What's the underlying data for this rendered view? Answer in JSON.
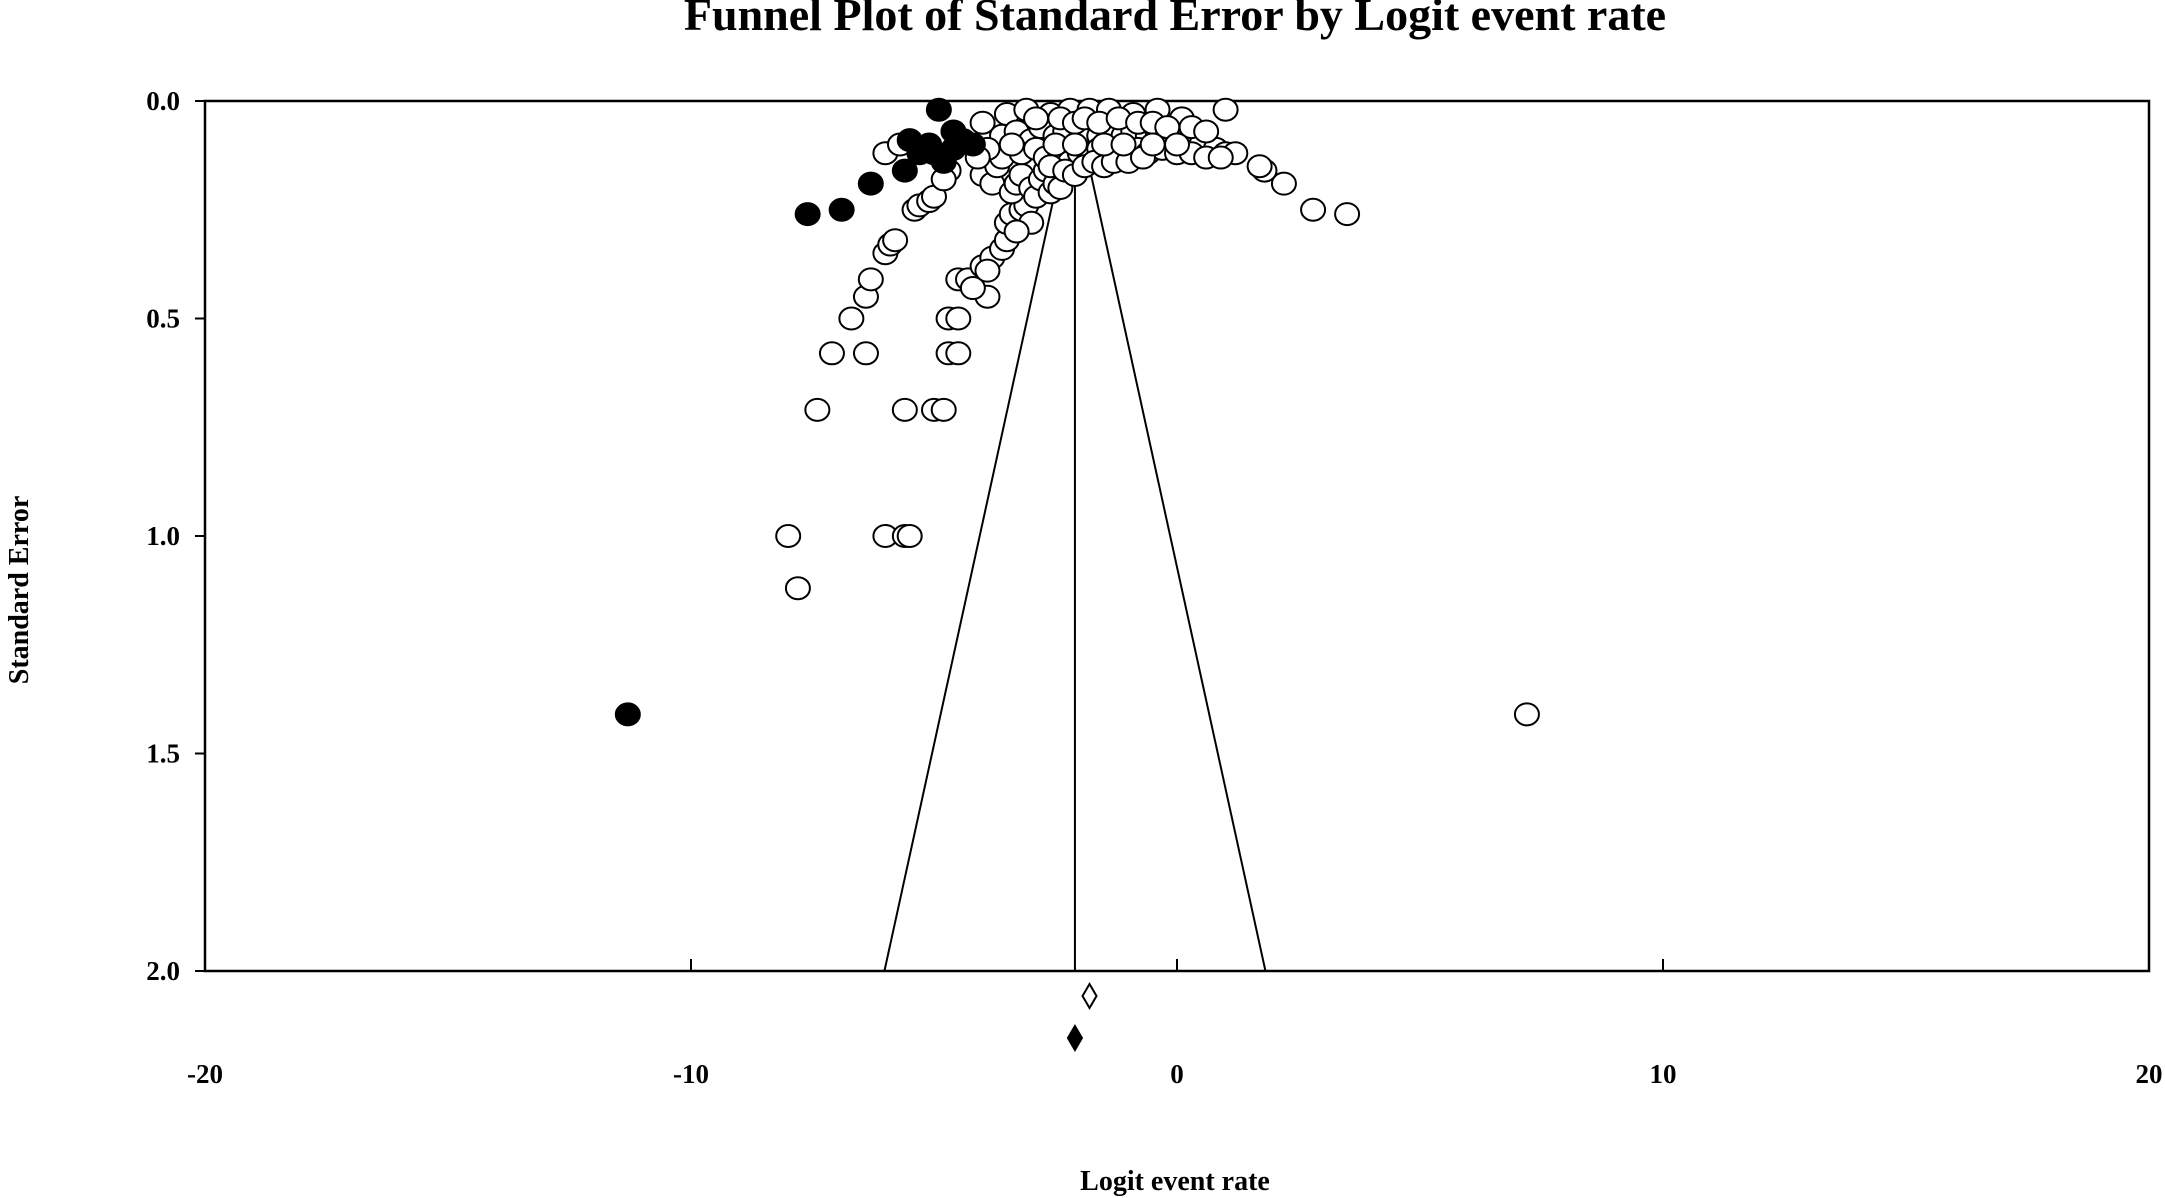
{
  "chart_data": {
    "type": "scatter",
    "title": "Funnel Plot of Standard Error by Logit event rate",
    "xlabel": "Logit event rate",
    "ylabel": "Standard Error",
    "xlim": [
      -20,
      20
    ],
    "ylim": [
      0.0,
      2.0
    ],
    "y_inverted": true,
    "x_ticks": [
      "-20",
      "-10",
      "0",
      "10",
      "20"
    ],
    "y_ticks": [
      "0.0",
      "0.5",
      "1.0",
      "1.5",
      "2.0"
    ],
    "x_tick_values": [
      -20,
      -10,
      0,
      10,
      20
    ],
    "y_tick_values": [
      0.0,
      0.5,
      1.0,
      1.5,
      2.0
    ],
    "grid": false,
    "legend": "none",
    "funnel": {
      "center": -2.1,
      "z": 1.96,
      "se_max": 2.0
    },
    "summary": {
      "observed": {
        "estimate": -2.1,
        "marker": "filled-diamond"
      },
      "adjusted": {
        "estimate": -1.8,
        "marker": "open-diamond"
      }
    },
    "series": [
      {
        "marker": "open-circle",
        "points": [
          [
            7.2,
            1.41
          ],
          [
            -8.0,
            1.0
          ],
          [
            -7.8,
            1.12
          ],
          [
            -6.0,
            1.0
          ],
          [
            -5.6,
            1.0
          ],
          [
            -5.5,
            1.0
          ],
          [
            -7.4,
            0.71
          ],
          [
            -5.6,
            0.71
          ],
          [
            -5.0,
            0.71
          ],
          [
            -4.8,
            0.71
          ],
          [
            -7.1,
            0.58
          ],
          [
            -6.4,
            0.58
          ],
          [
            -4.7,
            0.58
          ],
          [
            -4.5,
            0.58
          ],
          [
            -6.7,
            0.5
          ],
          [
            -4.7,
            0.5
          ],
          [
            -4.5,
            0.5
          ],
          [
            -6.4,
            0.45
          ],
          [
            -6.3,
            0.41
          ],
          [
            -4.5,
            0.41
          ],
          [
            -4.3,
            0.41
          ],
          [
            -3.9,
            0.45
          ],
          [
            -4.2,
            0.43
          ],
          [
            -6.0,
            0.35
          ],
          [
            -5.9,
            0.33
          ],
          [
            -5.8,
            0.32
          ],
          [
            -4.0,
            0.38
          ],
          [
            -3.8,
            0.36
          ],
          [
            -3.6,
            0.34
          ],
          [
            -3.5,
            0.32
          ],
          [
            -3.9,
            0.39
          ],
          [
            -5.4,
            0.25
          ],
          [
            -5.3,
            0.24
          ],
          [
            -5.1,
            0.23
          ],
          [
            -5.0,
            0.22
          ],
          [
            -3.5,
            0.28
          ],
          [
            -3.4,
            0.26
          ],
          [
            -3.2,
            0.25
          ],
          [
            -3.1,
            0.24
          ],
          [
            -3.0,
            0.28
          ],
          [
            -3.3,
            0.3
          ],
          [
            3.5,
            0.26
          ],
          [
            2.8,
            0.25
          ],
          [
            2.2,
            0.19
          ],
          [
            1.8,
            0.16
          ],
          [
            1.7,
            0.15
          ],
          [
            1.0,
            0.02
          ],
          [
            -6.0,
            0.12
          ],
          [
            -5.7,
            0.1
          ],
          [
            -4.7,
            0.16
          ],
          [
            -4.8,
            0.18
          ],
          [
            -4.0,
            0.17
          ],
          [
            -3.8,
            0.19
          ],
          [
            -3.7,
            0.15
          ],
          [
            -3.6,
            0.13
          ],
          [
            -3.4,
            0.21
          ],
          [
            -3.3,
            0.19
          ],
          [
            -3.2,
            0.17
          ],
          [
            -3.0,
            0.2
          ],
          [
            -2.9,
            0.22
          ],
          [
            -2.8,
            0.18
          ],
          [
            -2.7,
            0.16
          ],
          [
            -2.6,
            0.21
          ],
          [
            -2.5,
            0.19
          ],
          [
            -2.4,
            0.2
          ],
          [
            -4.0,
            0.05
          ],
          [
            -3.5,
            0.03
          ],
          [
            -3.1,
            0.02
          ],
          [
            -2.6,
            0.03
          ],
          [
            -2.2,
            0.02
          ],
          [
            -1.8,
            0.02
          ],
          [
            -1.4,
            0.02
          ],
          [
            -0.9,
            0.03
          ],
          [
            -0.4,
            0.02
          ],
          [
            0.1,
            0.04
          ],
          [
            -3.6,
            0.08
          ],
          [
            -3.3,
            0.07
          ],
          [
            -3.0,
            0.09
          ],
          [
            -2.8,
            0.06
          ],
          [
            -2.5,
            0.08
          ],
          [
            -2.3,
            0.07
          ],
          [
            -2.0,
            0.09
          ],
          [
            -1.8,
            0.07
          ],
          [
            -1.6,
            0.08
          ],
          [
            -1.3,
            0.06
          ],
          [
            -1.1,
            0.08
          ],
          [
            -0.9,
            0.07
          ],
          [
            -0.6,
            0.08
          ],
          [
            -0.4,
            0.07
          ],
          [
            -0.1,
            0.08
          ],
          [
            0.2,
            0.09
          ],
          [
            0.5,
            0.1
          ],
          [
            0.8,
            0.11
          ],
          [
            1.0,
            0.12
          ],
          [
            1.2,
            0.12
          ],
          [
            -3.2,
            0.12
          ],
          [
            -2.9,
            0.11
          ],
          [
            -2.7,
            0.13
          ],
          [
            -2.4,
            0.12
          ],
          [
            -2.2,
            0.14
          ],
          [
            -2.0,
            0.12
          ],
          [
            -1.8,
            0.13
          ],
          [
            -1.6,
            0.11
          ],
          [
            -1.4,
            0.12
          ],
          [
            -1.2,
            0.11
          ],
          [
            -1.0,
            0.12
          ],
          [
            -0.8,
            0.11
          ],
          [
            -0.6,
            0.12
          ],
          [
            -0.3,
            0.11
          ],
          [
            0.0,
            0.12
          ],
          [
            0.3,
            0.12
          ],
          [
            0.6,
            0.13
          ],
          [
            0.9,
            0.13
          ],
          [
            -2.6,
            0.15
          ],
          [
            -2.3,
            0.16
          ],
          [
            -2.1,
            0.17
          ],
          [
            -1.9,
            0.15
          ],
          [
            -1.7,
            0.14
          ],
          [
            -1.5,
            0.15
          ],
          [
            -1.3,
            0.14
          ],
          [
            -1.0,
            0.14
          ],
          [
            -0.7,
            0.13
          ],
          [
            -2.4,
            0.04
          ],
          [
            -2.1,
            0.05
          ],
          [
            -1.9,
            0.04
          ],
          [
            -1.6,
            0.05
          ],
          [
            -1.2,
            0.04
          ],
          [
            -0.8,
            0.05
          ],
          [
            -0.5,
            0.05
          ],
          [
            -0.2,
            0.06
          ],
          [
            0.3,
            0.06
          ],
          [
            0.6,
            0.07
          ],
          [
            -3.9,
            0.11
          ],
          [
            -4.1,
            0.13
          ],
          [
            -3.4,
            0.1
          ],
          [
            -2.9,
            0.04
          ],
          [
            -2.5,
            0.1
          ],
          [
            -2.1,
            0.1
          ],
          [
            -1.5,
            0.1
          ],
          [
            -1.1,
            0.1
          ],
          [
            -0.5,
            0.1
          ],
          [
            0.0,
            0.1
          ]
        ]
      },
      {
        "marker": "filled-circle",
        "points": [
          [
            -11.3,
            1.41
          ],
          [
            -7.6,
            0.26
          ],
          [
            -6.9,
            0.25
          ],
          [
            -6.3,
            0.19
          ],
          [
            -5.6,
            0.16
          ],
          [
            -5.3,
            0.12
          ],
          [
            -5.1,
            0.1
          ],
          [
            -4.6,
            0.11
          ],
          [
            -4.4,
            0.09
          ],
          [
            -4.2,
            0.1
          ],
          [
            -4.8,
            0.14
          ],
          [
            -4.9,
            0.02
          ],
          [
            -5.5,
            0.09
          ],
          [
            -4.6,
            0.07
          ],
          [
            -5.0,
            0.12
          ]
        ]
      }
    ]
  }
}
